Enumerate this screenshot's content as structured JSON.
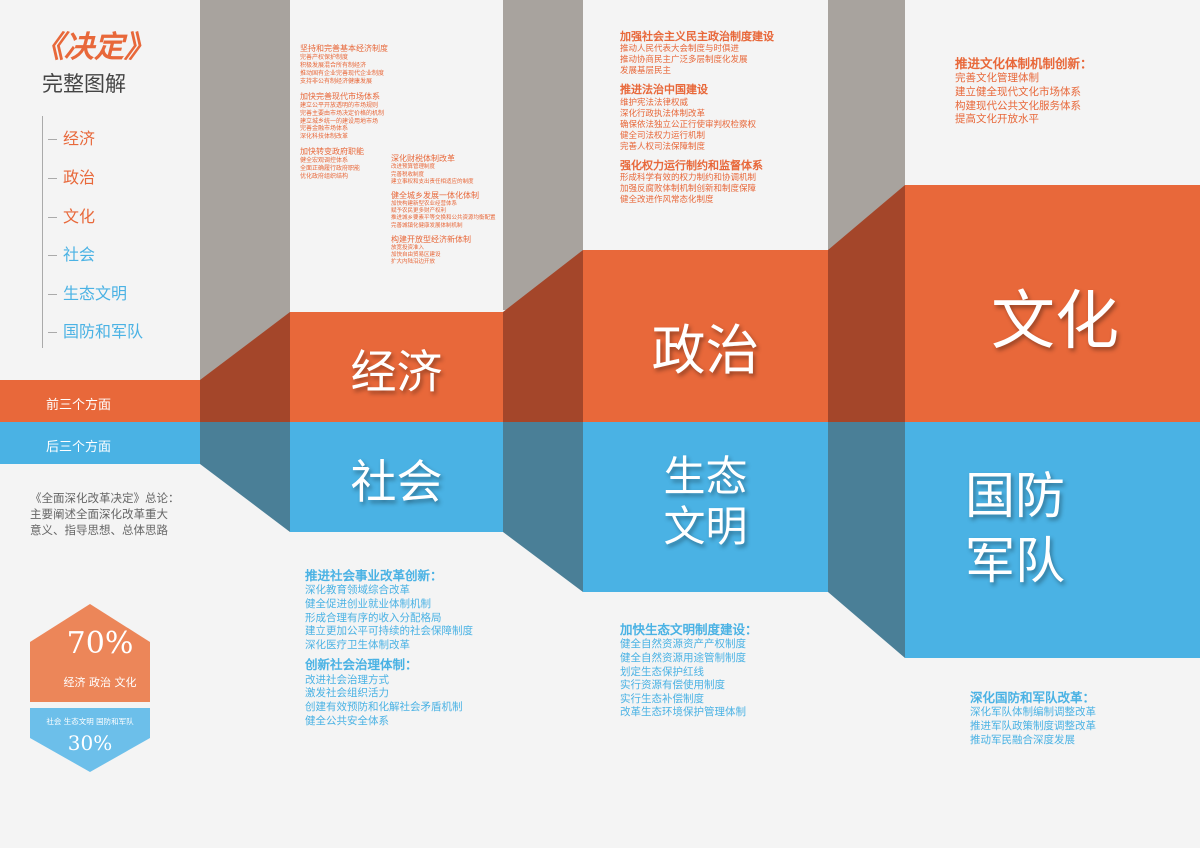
{
  "title": "《决定》",
  "subtitle": "完整图解",
  "nav": [
    "经济",
    "政治",
    "文化",
    "社会",
    "生态文明",
    "国防和军队"
  ],
  "bands": {
    "front": "前三个方面",
    "back": "后三个方面"
  },
  "summary": [
    "《全面深化改革决定》总论：",
    "主要阐述全面深化改革重大",
    "意义、指导思想、总体思路"
  ],
  "hex_top": {
    "percent": "70%",
    "label": "经济 政治 文化"
  },
  "hex_bottom": {
    "label": "社会 生态文明 国防和军队",
    "percent": "30%"
  },
  "colors": {
    "orange": "#e8683a",
    "blue": "#4ab2e4",
    "gray": "#a8a39e",
    "bg": "#f4f4f4"
  },
  "big_labels": {
    "economy": "经济",
    "politics": "政治",
    "culture": "文化",
    "society": "社会",
    "ecology": [
      "生态",
      "文明"
    ],
    "defense": [
      "国防",
      "军队"
    ]
  },
  "economy_text": {
    "col1": [
      {
        "heading": "坚持和完善基本经济制度",
        "items": [
          "完善产权保护制度",
          "积极发展混合所有制经济",
          "推动国有企业完善现代企业制度",
          "支持非公有制经济健康发展"
        ]
      },
      {
        "heading": "加快完善现代市场体系",
        "items": [
          "建立公平开放透明的市场规则",
          "完善主要由市场决定价格的机制",
          "建立城乡统一的建设用地市场",
          "完善金融市场体系",
          "深化科技体制改革"
        ]
      },
      {
        "heading": "加快转变政府职能",
        "items": [
          "健全宏观调控体系",
          "全面正确履行政府职能",
          "优化政府组织结构"
        ]
      }
    ],
    "col2": [
      {
        "heading": "深化财税体制改革",
        "items": [
          "改进预算管理制度",
          "完善税收制度",
          "建立事权和支出责任相适应的制度"
        ]
      },
      {
        "heading": "健全城乡发展一体化体制",
        "items": [
          "加快构建新型农业经营体系",
          "赋予农民更多财产权利",
          "推进城乡要素平等交换和公共资源均衡配置",
          "完善城镇化健康发展体制机制"
        ]
      },
      {
        "heading": "构建开放型经济新体制",
        "items": [
          "放宽投资准入",
          "加快自由贸易区建设",
          "扩大内陆沿边开放"
        ]
      }
    ]
  },
  "politics_text": [
    {
      "heading": "加强社会主义民主政治制度建设",
      "items": [
        "推动人民代表大会制度与时俱进",
        "推动协商民主广泛多层制度化发展",
        "发展基层民主"
      ]
    },
    {
      "heading": "推进法治中国建设",
      "items": [
        "维护宪法法律权威",
        "深化行政执法体制改革",
        "确保依法独立公正行使审判权检察权",
        "健全司法权力运行机制",
        "完善人权司法保障制度"
      ]
    },
    {
      "heading": "强化权力运行制约和监督体系",
      "items": [
        "形成科学有效的权力制约和协调机制",
        "加强反腐败体制机制创新和制度保障",
        "健全改进作风常态化制度"
      ]
    }
  ],
  "culture_text": {
    "heading": "推进文化体制机制创新：",
    "items": [
      "完善文化管理体制",
      "建立健全现代文化市场体系",
      "构建现代公共文化服务体系",
      "提高文化开放水平"
    ]
  },
  "society_text": [
    {
      "heading": "推进社会事业改革创新：",
      "items": [
        "深化教育领域综合改革",
        "健全促进创业就业体制机制",
        "形成合理有序的收入分配格局",
        "建立更加公平可持续的社会保障制度",
        "深化医疗卫生体制改革"
      ]
    },
    {
      "heading": "创新社会治理体制：",
      "items": [
        "改进社会治理方式",
        "激发社会组织活力",
        "创建有效预防和化解社会矛盾机制",
        "健全公共安全体系"
      ]
    }
  ],
  "ecology_text": {
    "heading": "加快生态文明制度建设：",
    "items": [
      "健全自然资源资产产权制度",
      "健全自然资源用途管制制度",
      "划定生态保护红线",
      "实行资源有偿使用制度",
      "实行生态补偿制度",
      "改革生态环境保护管理体制"
    ]
  },
  "defense_text": {
    "heading": "深化国防和军队改革：",
    "items": [
      "深化军队体制编制调整改革",
      "推进军队政策制度调整改革",
      "推动军民融合深度发展"
    ]
  }
}
